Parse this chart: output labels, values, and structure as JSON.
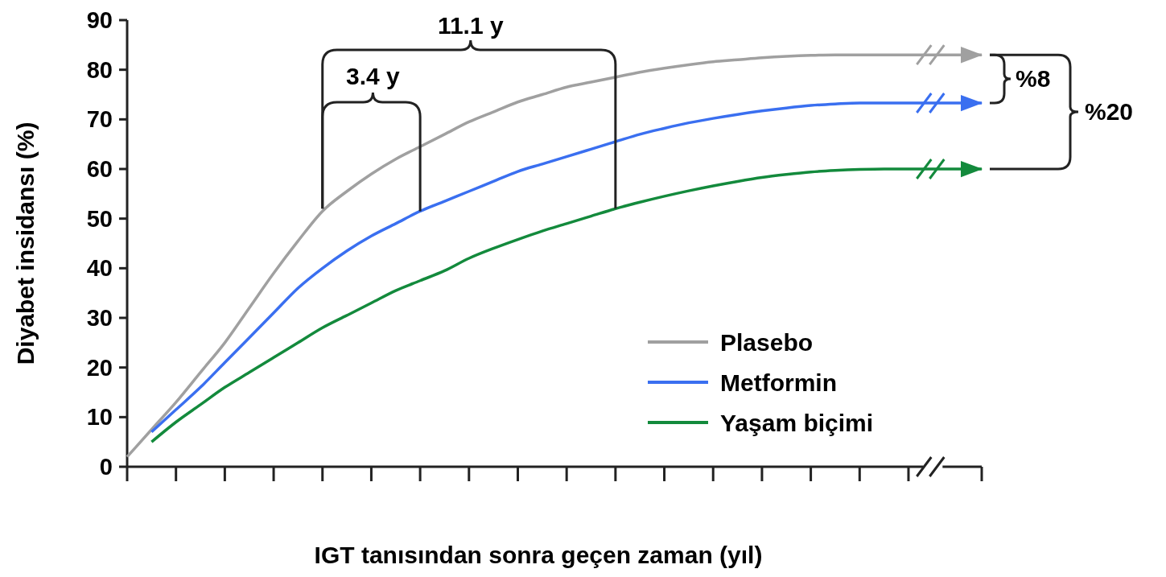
{
  "chart_data": {
    "type": "line",
    "xlabel": "IGT tanısından sonra geçen zaman (yıl)",
    "ylabel": "Diyabet insidansı (%)",
    "categories": [
      null,
      null,
      null,
      null,
      null,
      null,
      null,
      null,
      null,
      null,
      null,
      null,
      null,
      null,
      null,
      null,
      null,
      null,
      null,
      null,
      null,
      null,
      null,
      null,
      null,
      null,
      null,
      null,
      null,
      null,
      null,
      null,
      null,
      null,
      null,
      null
    ],
    "ylim": [
      0,
      90
    ],
    "yticks": [
      0,
      10,
      20,
      30,
      40,
      50,
      60,
      70,
      80,
      90
    ],
    "grid": false,
    "legend": "bottom right",
    "line_style": "solid",
    "series": [
      {
        "name": "Plasebo",
        "color": "#a0a0a0",
        "values": [
          2,
          7.5,
          13,
          19,
          25,
          32,
          39,
          45.5,
          51.5,
          55.5,
          59,
          62,
          64.5,
          67,
          69.5,
          71.5,
          73.5,
          75,
          76.5,
          77.5,
          78.5,
          79.5,
          80.3,
          81,
          81.6,
          82,
          82.4,
          82.7,
          82.9,
          83,
          83,
          83,
          83,
          83,
          83,
          83
        ]
      },
      {
        "name": "Metformin",
        "color": "#3a6ff0",
        "values": [
          null,
          7,
          11.5,
          16,
          21,
          26,
          31,
          36,
          40,
          43.5,
          46.5,
          49,
          51.5,
          53.5,
          55.5,
          57.5,
          59.5,
          61,
          62.5,
          64,
          65.5,
          67,
          68.2,
          69.3,
          70.2,
          71,
          71.7,
          72.3,
          72.8,
          73.1,
          73.3,
          73.3,
          73.3,
          73.3,
          73.3,
          73.3
        ]
      },
      {
        "name": "Yaşam biçimi",
        "color": "#138a3c",
        "values": [
          null,
          5,
          9,
          12.5,
          16,
          19,
          22,
          25,
          28,
          30.5,
          33,
          35.5,
          37.5,
          39.5,
          42,
          44,
          45.8,
          47.5,
          49,
          50.5,
          52,
          53.3,
          54.5,
          55.6,
          56.6,
          57.5,
          58.3,
          58.9,
          59.4,
          59.7,
          59.9,
          60,
          60,
          60,
          60,
          60
        ]
      }
    ],
    "annotations": [
      "11.1 y",
      "3.4 y",
      "%8",
      "%20"
    ]
  }
}
